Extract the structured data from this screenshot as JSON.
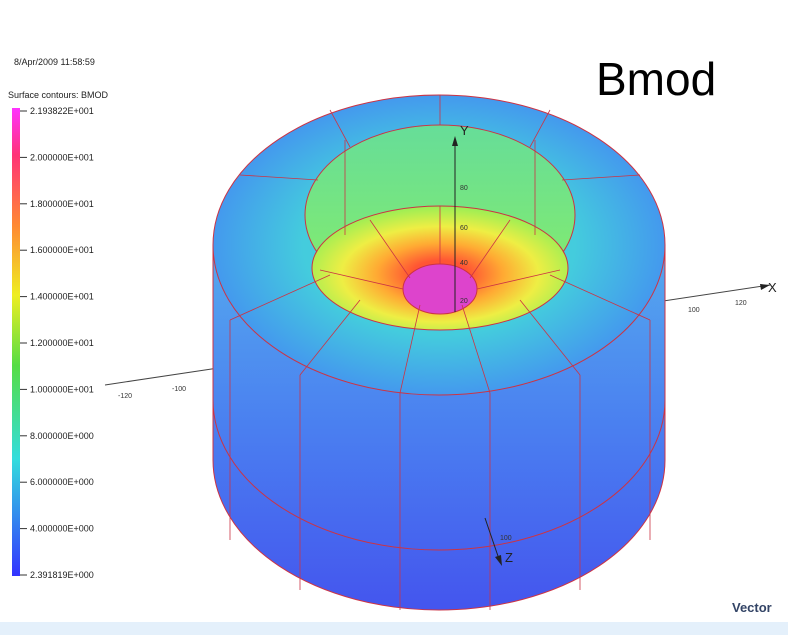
{
  "header": {
    "timestamp": "8/Apr/2009 11:58:59",
    "title": "Bmod"
  },
  "legend": {
    "caption": "Surface contours: BMOD",
    "labels": [
      "2.193822E+001",
      "2.000000E+001",
      "1.800000E+001",
      "1.600000E+001",
      "1.400000E+001",
      "1.200000E+001",
      "1.000000E+001",
      "8.000000E+000",
      "6.000000E+000",
      "4.000000E+000",
      "2.391819E+000"
    ]
  },
  "axes": {
    "x": {
      "label": "X",
      "ticks": [
        "-120",
        "-100",
        "100",
        "120"
      ]
    },
    "y": {
      "label": "Y",
      "ticks": [
        "20",
        "40",
        "60",
        "80"
      ]
    },
    "z": {
      "label": "Z",
      "ticks": [
        "100"
      ]
    }
  },
  "logo": {
    "text": "Vector"
  }
}
